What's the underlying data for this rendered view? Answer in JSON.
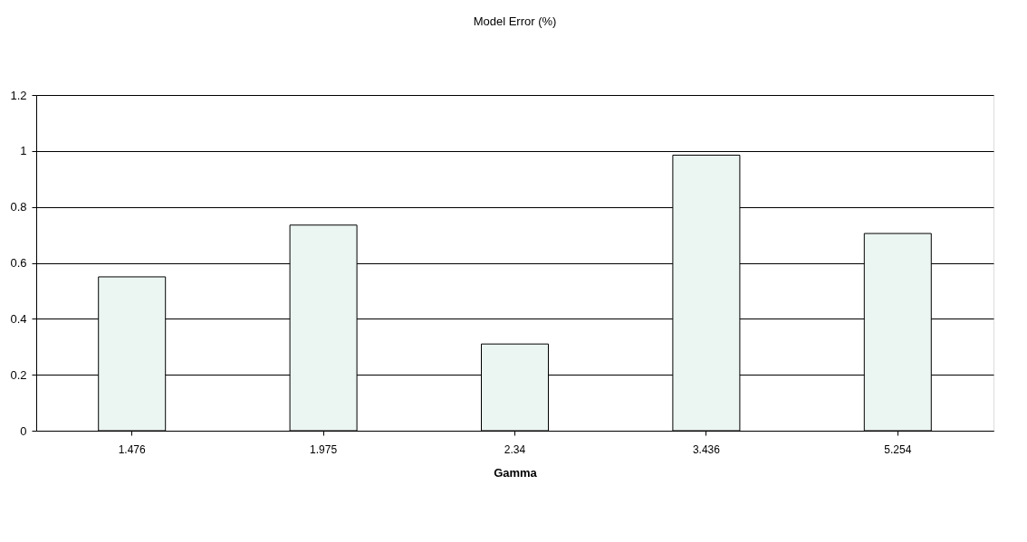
{
  "chart_data": {
    "type": "bar",
    "title": "Model Error (%)",
    "xlabel": "Gamma",
    "categories": [
      "1.476",
      "1.975",
      "2.34",
      "3.436",
      "5.254"
    ],
    "values": [
      0.55,
      0.735,
      0.31,
      0.985,
      0.705
    ],
    "color": "#ebf5f2",
    "ylim": [
      0,
      1.2
    ],
    "yticks": [
      0,
      0.2,
      0.4,
      0.6,
      0.8,
      1,
      1.2
    ],
    "grid": "y"
  }
}
